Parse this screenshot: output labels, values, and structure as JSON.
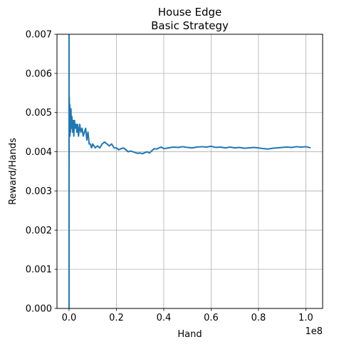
{
  "chart_data": {
    "type": "line",
    "title": "House Edge",
    "subtitle": "Basic Strategy",
    "xlabel": "Hand",
    "ylabel": "Reward/Hands",
    "x_offset_label": "1e8",
    "xlim": [
      -0.051,
      1.071
    ],
    "ylim": [
      0.0,
      0.007
    ],
    "x_ticks": [
      0.0,
      0.2,
      0.4,
      0.6,
      0.8,
      1.0
    ],
    "x_tick_labels": [
      "0.0",
      "0.2",
      "0.4",
      "0.6",
      "0.8",
      "1.0"
    ],
    "y_ticks": [
      0.0,
      0.001,
      0.002,
      0.003,
      0.004,
      0.005,
      0.006,
      0.007
    ],
    "y_tick_labels": [
      "0.000",
      "0.001",
      "0.002",
      "0.003",
      "0.004",
      "0.005",
      "0.006",
      "0.007"
    ],
    "grid": true,
    "line_color": "#1f77b4",
    "series": [
      {
        "x": [
          0.0,
          0.0,
          0.0,
          0.001,
          0.002,
          0.003,
          0.004,
          0.005,
          0.006,
          0.008,
          0.01,
          0.012,
          0.015,
          0.018,
          0.02,
          0.023,
          0.026,
          0.03,
          0.033,
          0.036,
          0.04,
          0.045,
          0.05,
          0.055,
          0.06,
          0.065,
          0.07,
          0.075,
          0.08,
          0.085,
          0.09,
          0.095,
          0.1,
          0.11,
          0.12,
          0.13,
          0.14,
          0.15,
          0.16,
          0.17,
          0.18,
          0.19,
          0.2,
          0.21,
          0.22,
          0.23,
          0.24,
          0.25,
          0.26,
          0.27,
          0.28,
          0.29,
          0.3,
          0.31,
          0.32,
          0.33,
          0.34,
          0.35,
          0.36,
          0.37,
          0.38,
          0.39,
          0.4,
          0.42,
          0.44,
          0.46,
          0.48,
          0.5,
          0.52,
          0.54,
          0.56,
          0.58,
          0.6,
          0.62,
          0.64,
          0.66,
          0.68,
          0.7,
          0.72,
          0.74,
          0.76,
          0.78,
          0.8,
          0.82,
          0.84,
          0.86,
          0.88,
          0.9,
          0.92,
          0.94,
          0.96,
          0.98,
          1.0,
          1.02
        ],
        "y": [
          0.0,
          0.007,
          0.0035,
          0.0054,
          0.0046,
          0.0052,
          0.0044,
          0.005,
          0.0045,
          0.0051,
          0.0046,
          0.0049,
          0.0045,
          0.0048,
          0.0044,
          0.0048,
          0.0046,
          0.0047,
          0.0045,
          0.0047,
          0.0044,
          0.0047,
          0.0045,
          0.0046,
          0.0044,
          0.0045,
          0.0046,
          0.0043,
          0.0045,
          0.0042,
          0.0042,
          0.0041,
          0.0042,
          0.0041,
          0.00415,
          0.0041,
          0.0042,
          0.00425,
          0.0042,
          0.00415,
          0.0042,
          0.0041,
          0.0041,
          0.00405,
          0.00408,
          0.0041,
          0.00405,
          0.004,
          0.00402,
          0.004,
          0.00398,
          0.00396,
          0.00397,
          0.00395,
          0.00398,
          0.004,
          0.00397,
          0.00403,
          0.00408,
          0.00407,
          0.0041,
          0.00412,
          0.00408,
          0.0041,
          0.00412,
          0.00411,
          0.00413,
          0.00411,
          0.0041,
          0.00412,
          0.00413,
          0.00412,
          0.00414,
          0.00411,
          0.00412,
          0.0041,
          0.00412,
          0.0041,
          0.00411,
          0.00409,
          0.0041,
          0.00411,
          0.0041,
          0.00408,
          0.00407,
          0.00409,
          0.0041,
          0.00411,
          0.00412,
          0.00411,
          0.00413,
          0.00412,
          0.00413,
          0.0041
        ]
      }
    ]
  }
}
